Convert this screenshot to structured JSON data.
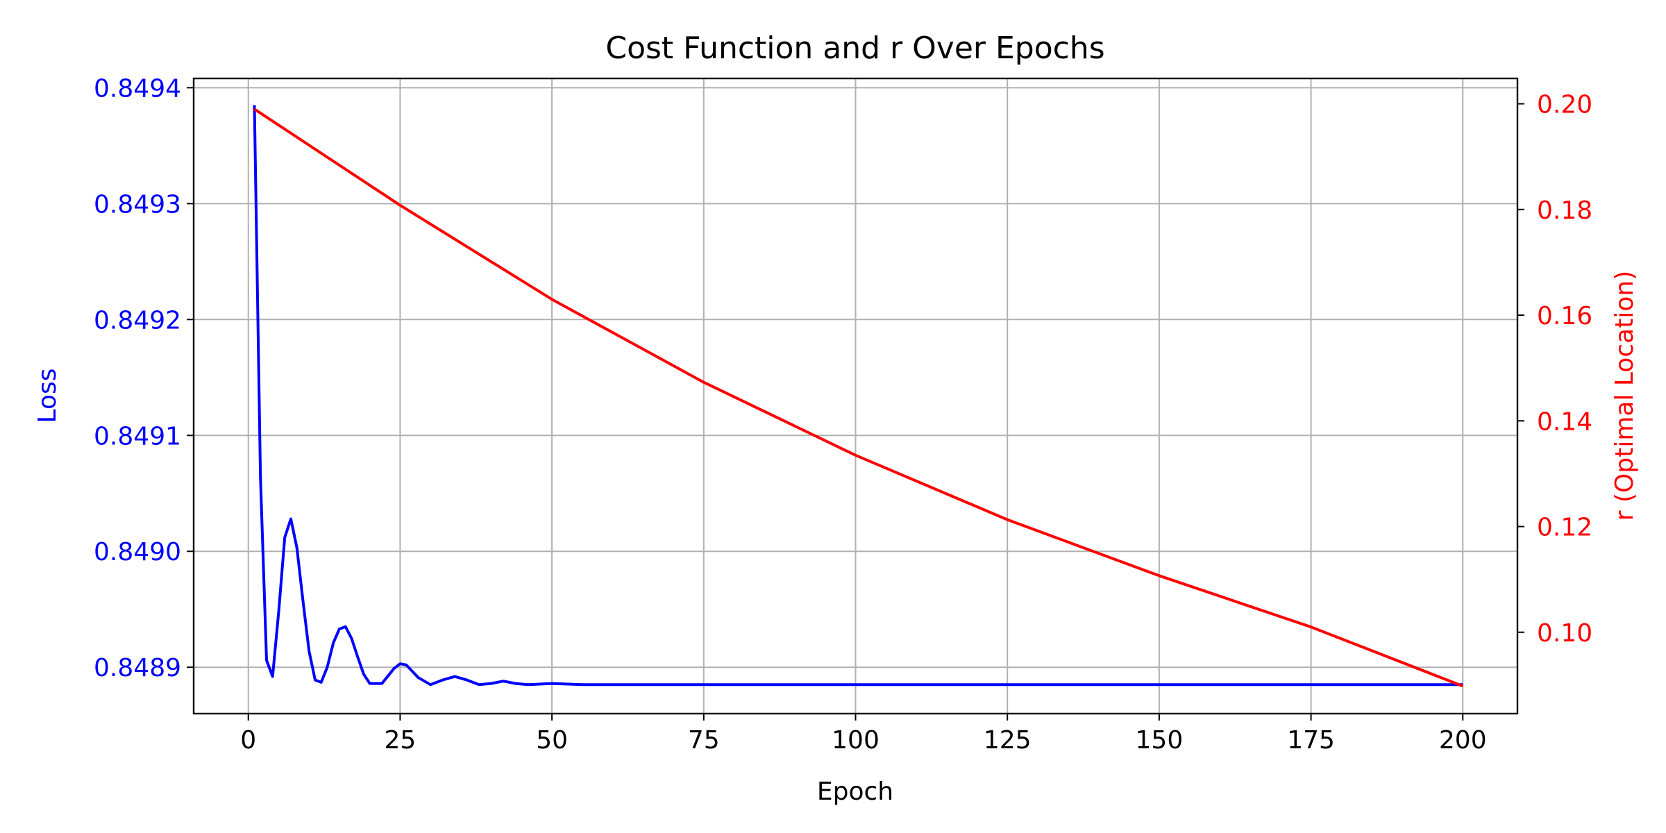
{
  "chart_data": {
    "type": "line",
    "title": "Cost Function and r Over Epochs",
    "xlabel": "Epoch",
    "ylabel_left": "Loss",
    "ylabel_right": "r (Optimal Location)",
    "xlim": [
      -9,
      209
    ],
    "ylim_left": [
      0.84886,
      0.849408
    ],
    "ylim_right": [
      0.0846,
      0.2048
    ],
    "x_ticks": [
      "0",
      "25",
      "50",
      "75",
      "100",
      "125",
      "150",
      "175",
      "200"
    ],
    "y_left_ticks": [
      "0.8489",
      "0.8490",
      "0.8491",
      "0.8492",
      "0.8493",
      "0.8494"
    ],
    "y_right_ticks": [
      "0.10",
      "0.12",
      "0.14",
      "0.16",
      "0.18",
      "0.20"
    ],
    "grid": true,
    "series": [
      {
        "axis": "left",
        "color": "#0000ff",
        "points": [
          [
            1,
            0.849385
          ],
          [
            2,
            0.849064
          ],
          [
            3,
            0.848906
          ],
          [
            4,
            0.848892
          ],
          [
            5,
            0.848948
          ],
          [
            6,
            0.849012
          ],
          [
            7,
            0.849028
          ],
          [
            8,
            0.849003
          ],
          [
            9,
            0.848957
          ],
          [
            10,
            0.848914
          ],
          [
            11,
            0.848889
          ],
          [
            12,
            0.848887
          ],
          [
            13,
            0.8489
          ],
          [
            14,
            0.848921
          ],
          [
            15,
            0.848933
          ],
          [
            16,
            0.848935
          ],
          [
            17,
            0.848925
          ],
          [
            18,
            0.848909
          ],
          [
            19,
            0.848894
          ],
          [
            20,
            0.848886
          ],
          [
            22,
            0.848886
          ],
          [
            24,
            0.848899
          ],
          [
            25,
            0.848903
          ],
          [
            26,
            0.848902
          ],
          [
            28,
            0.848891
          ],
          [
            30,
            0.848885
          ],
          [
            32,
            0.848889
          ],
          [
            34,
            0.848892
          ],
          [
            36,
            0.848889
          ],
          [
            38,
            0.848885
          ],
          [
            40,
            0.848886
          ],
          [
            42,
            0.848888
          ],
          [
            44,
            0.848886
          ],
          [
            46,
            0.848885
          ],
          [
            50,
            0.848886
          ],
          [
            55,
            0.848885
          ],
          [
            60,
            0.848885
          ],
          [
            65,
            0.848885
          ],
          [
            70,
            0.848885
          ],
          [
            80,
            0.848885
          ],
          [
            100,
            0.848885
          ],
          [
            125,
            0.848885
          ],
          [
            150,
            0.848885
          ],
          [
            175,
            0.848885
          ],
          [
            200,
            0.848885
          ]
        ]
      },
      {
        "axis": "right",
        "color": "#ff0000",
        "points": [
          [
            1,
            0.199
          ],
          [
            25,
            0.1808
          ],
          [
            50,
            0.163
          ],
          [
            75,
            0.1473
          ],
          [
            100,
            0.1335
          ],
          [
            125,
            0.1213
          ],
          [
            150,
            0.1107
          ],
          [
            175,
            0.101
          ],
          [
            200,
            0.0898
          ]
        ]
      }
    ]
  }
}
